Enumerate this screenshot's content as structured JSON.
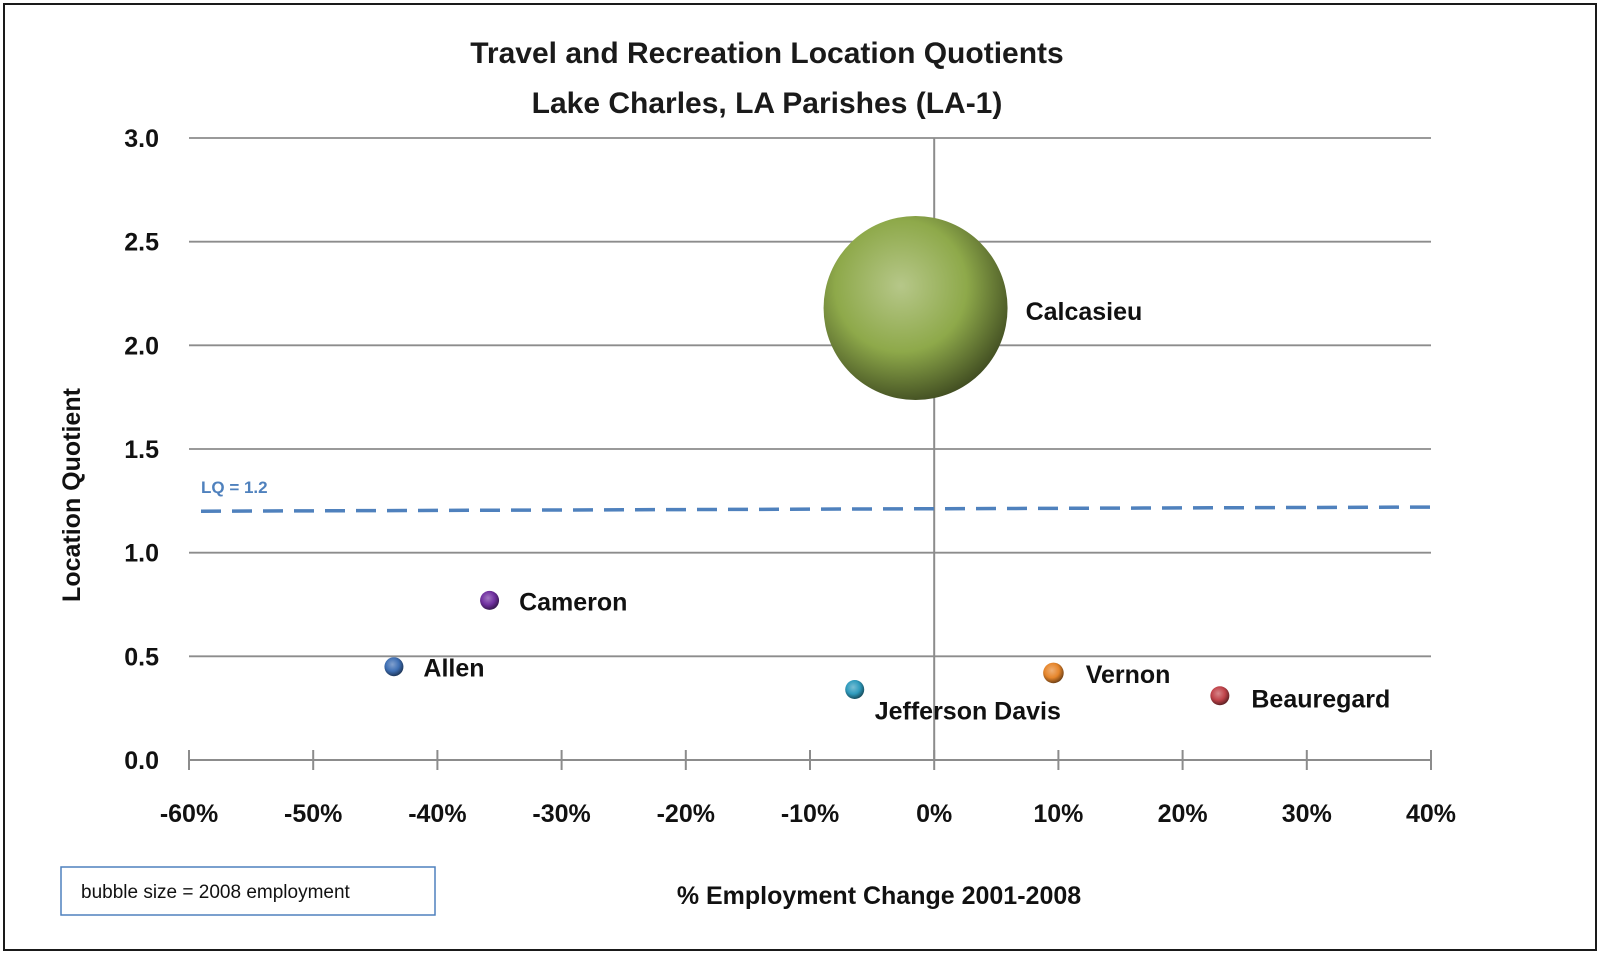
{
  "chart_data": {
    "type": "bubble",
    "title": "Travel and Recreation Location Quotients",
    "subtitle": "Lake Charles, LA Parishes (LA-1)",
    "xlabel": "% Employment Change 2001-2008",
    "ylabel": "Location Quotient",
    "xlim": [
      -60,
      40
    ],
    "ylim": [
      0.0,
      3.0
    ],
    "x_ticks": [
      "-60%",
      "-50%",
      "-40%",
      "-30%",
      "-20%",
      "-10%",
      "0%",
      "10%",
      "20%",
      "30%",
      "40%"
    ],
    "y_ticks": [
      "0.0",
      "0.5",
      "1.0",
      "1.5",
      "2.0",
      "2.5",
      "3.0"
    ],
    "grid": "horizontal",
    "reference_line": {
      "label": "LQ = 1.2",
      "y_start": 1.2,
      "y_end": 1.22,
      "color": "#4f81bd"
    },
    "size_note": "bubble size = 2008 employment",
    "points": [
      {
        "name": "Calcasieu",
        "x": -1.5,
        "y": 2.18,
        "size": 8800,
        "color": "#8ea94a"
      },
      {
        "name": "Cameron",
        "x": -35.8,
        "y": 0.77,
        "size": 25,
        "color": "#7030a0"
      },
      {
        "name": "Allen",
        "x": -43.5,
        "y": 0.45,
        "size": 60,
        "color": "#3e6fb4"
      },
      {
        "name": "Jefferson Davis",
        "x": -6.4,
        "y": 0.34,
        "size": 70,
        "color": "#2f9bbd"
      },
      {
        "name": "Vernon",
        "x": 9.6,
        "y": 0.42,
        "size": 110,
        "color": "#e6862c"
      },
      {
        "name": "Beauregard",
        "x": 23.0,
        "y": 0.31,
        "size": 65,
        "color": "#c0434a"
      }
    ]
  }
}
